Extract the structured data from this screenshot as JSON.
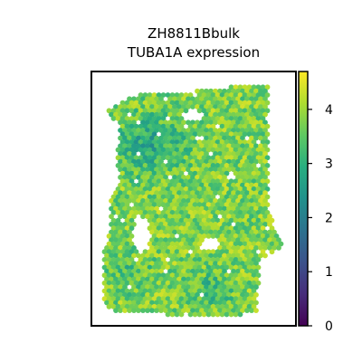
{
  "chart_data": {
    "type": "heatmap",
    "title_lines": [
      "ZH8811Bbulk",
      "TUBA1A expression"
    ],
    "xlabel": "",
    "ylabel": "",
    "grid": false,
    "legend": "colorbar-right",
    "colorbar": {
      "colormap": "viridis",
      "range": [
        0,
        4.7
      ],
      "ticks": [
        0,
        1,
        2,
        3,
        4
      ]
    },
    "typical_value_range": [
      2.6,
      4.5
    ]
  }
}
